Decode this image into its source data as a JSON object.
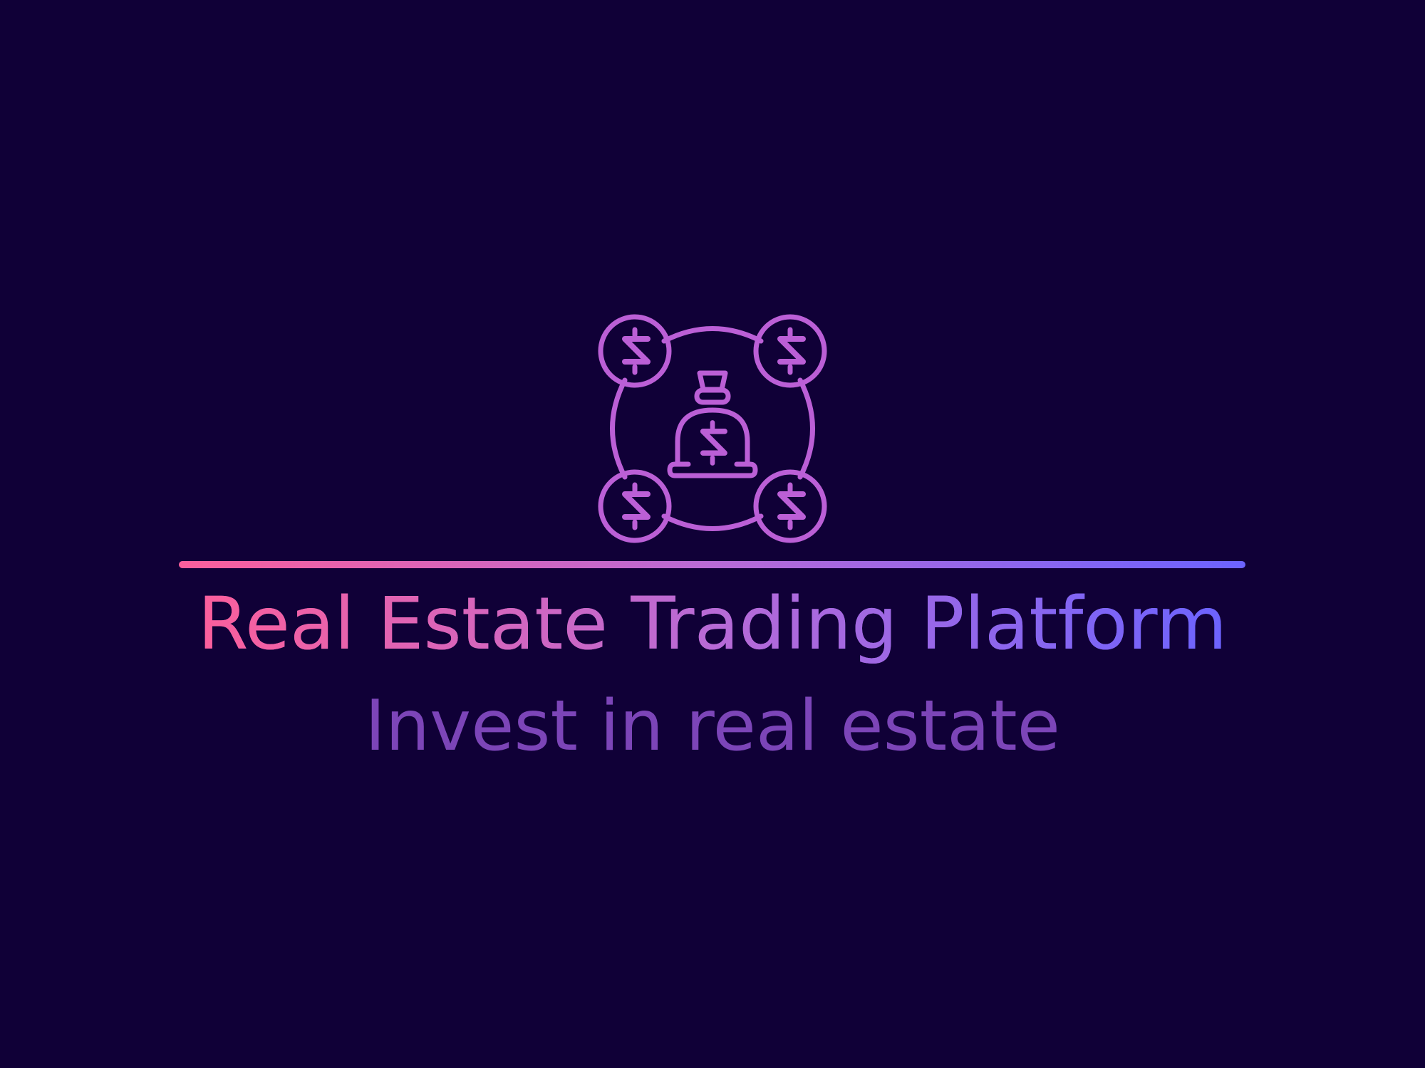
{
  "logo": {
    "icon": "money-bag-network-icon",
    "title": "Real Estate Trading Platform",
    "tagline": "Invest in real estate"
  },
  "colors": {
    "background": "#100037",
    "gradient_start": "#fb5f9c",
    "gradient_mid": "#b86ad6",
    "gradient_end": "#6c63ff",
    "icon": "#bb5fd6",
    "tagline": "#7c45b8"
  }
}
